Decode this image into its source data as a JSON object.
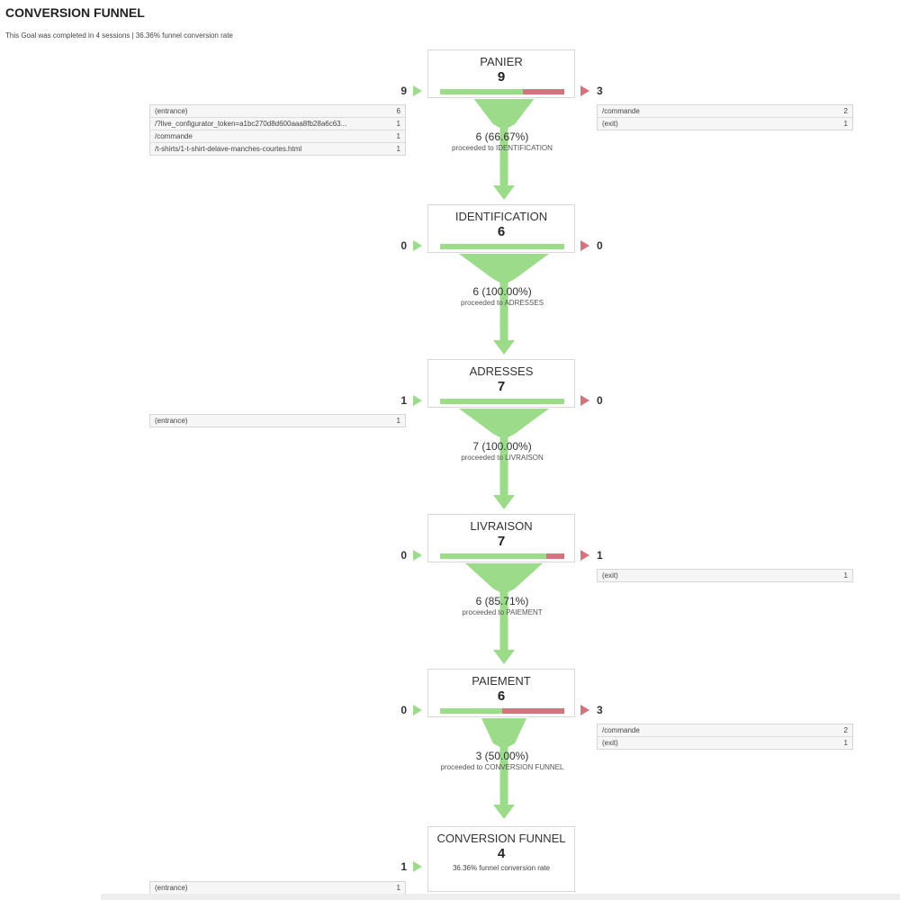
{
  "title": "CONVERSION FUNNEL",
  "subtitle": "This Goal was completed in 4 sessions | 36.36% funnel conversion rate",
  "colors": {
    "entry": "#9bdb8a",
    "exit": "#d4737d",
    "funnel": "#9bdb8a",
    "border": "#d8d8d8"
  },
  "chart_data": {
    "type": "funnel",
    "title": "CONVERSION FUNNEL",
    "steps": [
      {
        "name": "PANIER",
        "count": "9",
        "entries": "9",
        "exits": "3",
        "proceeded_ratio": 0.6667,
        "proceed_value": "6 (66.67%)",
        "proceed_label": "proceeded to IDENTIFICATION",
        "entrance_sources": [
          {
            "label": "(entrance)",
            "value": "6"
          },
          {
            "label": "/?live_configurator_token=a1bc270d8d600aaa8fb28a6c63...",
            "value": "1"
          },
          {
            "label": "/commande",
            "value": "1"
          },
          {
            "label": "/t-shirts/1-t-shirt-delave-manches-courtes.html",
            "value": "1"
          }
        ],
        "exit_destinations": [
          {
            "label": "/commande",
            "value": "2"
          },
          {
            "label": "(exit)",
            "value": "1"
          }
        ]
      },
      {
        "name": "IDENTIFICATION",
        "count": "6",
        "entries": "0",
        "exits": "0",
        "proceeded_ratio": 1.0,
        "proceed_value": "6 (100.00%)",
        "proceed_label": "proceeded to ADRESSES",
        "entrance_sources": [],
        "exit_destinations": []
      },
      {
        "name": "ADRESSES",
        "count": "7",
        "entries": "1",
        "exits": "0",
        "proceeded_ratio": 1.0,
        "proceed_value": "7 (100.00%)",
        "proceed_label": "proceeded to LIVRAISON",
        "entrance_sources": [
          {
            "label": "(entrance)",
            "value": "1"
          }
        ],
        "exit_destinations": []
      },
      {
        "name": "LIVRAISON",
        "count": "7",
        "entries": "0",
        "exits": "1",
        "proceeded_ratio": 0.8571,
        "proceed_value": "6 (85.71%)",
        "proceed_label": "proceeded to PAIEMENT",
        "entrance_sources": [],
        "exit_destinations": [
          {
            "label": "(exit)",
            "value": "1"
          }
        ]
      },
      {
        "name": "PAIEMENT",
        "count": "6",
        "entries": "0",
        "exits": "3",
        "proceeded_ratio": 0.5,
        "proceed_value": "3 (50.00%)",
        "proceed_label": "proceeded to CONVERSION FUNNEL",
        "entrance_sources": [],
        "exit_destinations": [
          {
            "label": "/commande",
            "value": "2"
          },
          {
            "label": "(exit)",
            "value": "1"
          }
        ]
      }
    ],
    "goal": {
      "name": "CONVERSION FUNNEL",
      "count": "4",
      "entries": "1",
      "caption": "36.36% funnel conversion rate",
      "entrance_sources": [
        {
          "label": "(entrance)",
          "value": "1"
        }
      ]
    }
  }
}
